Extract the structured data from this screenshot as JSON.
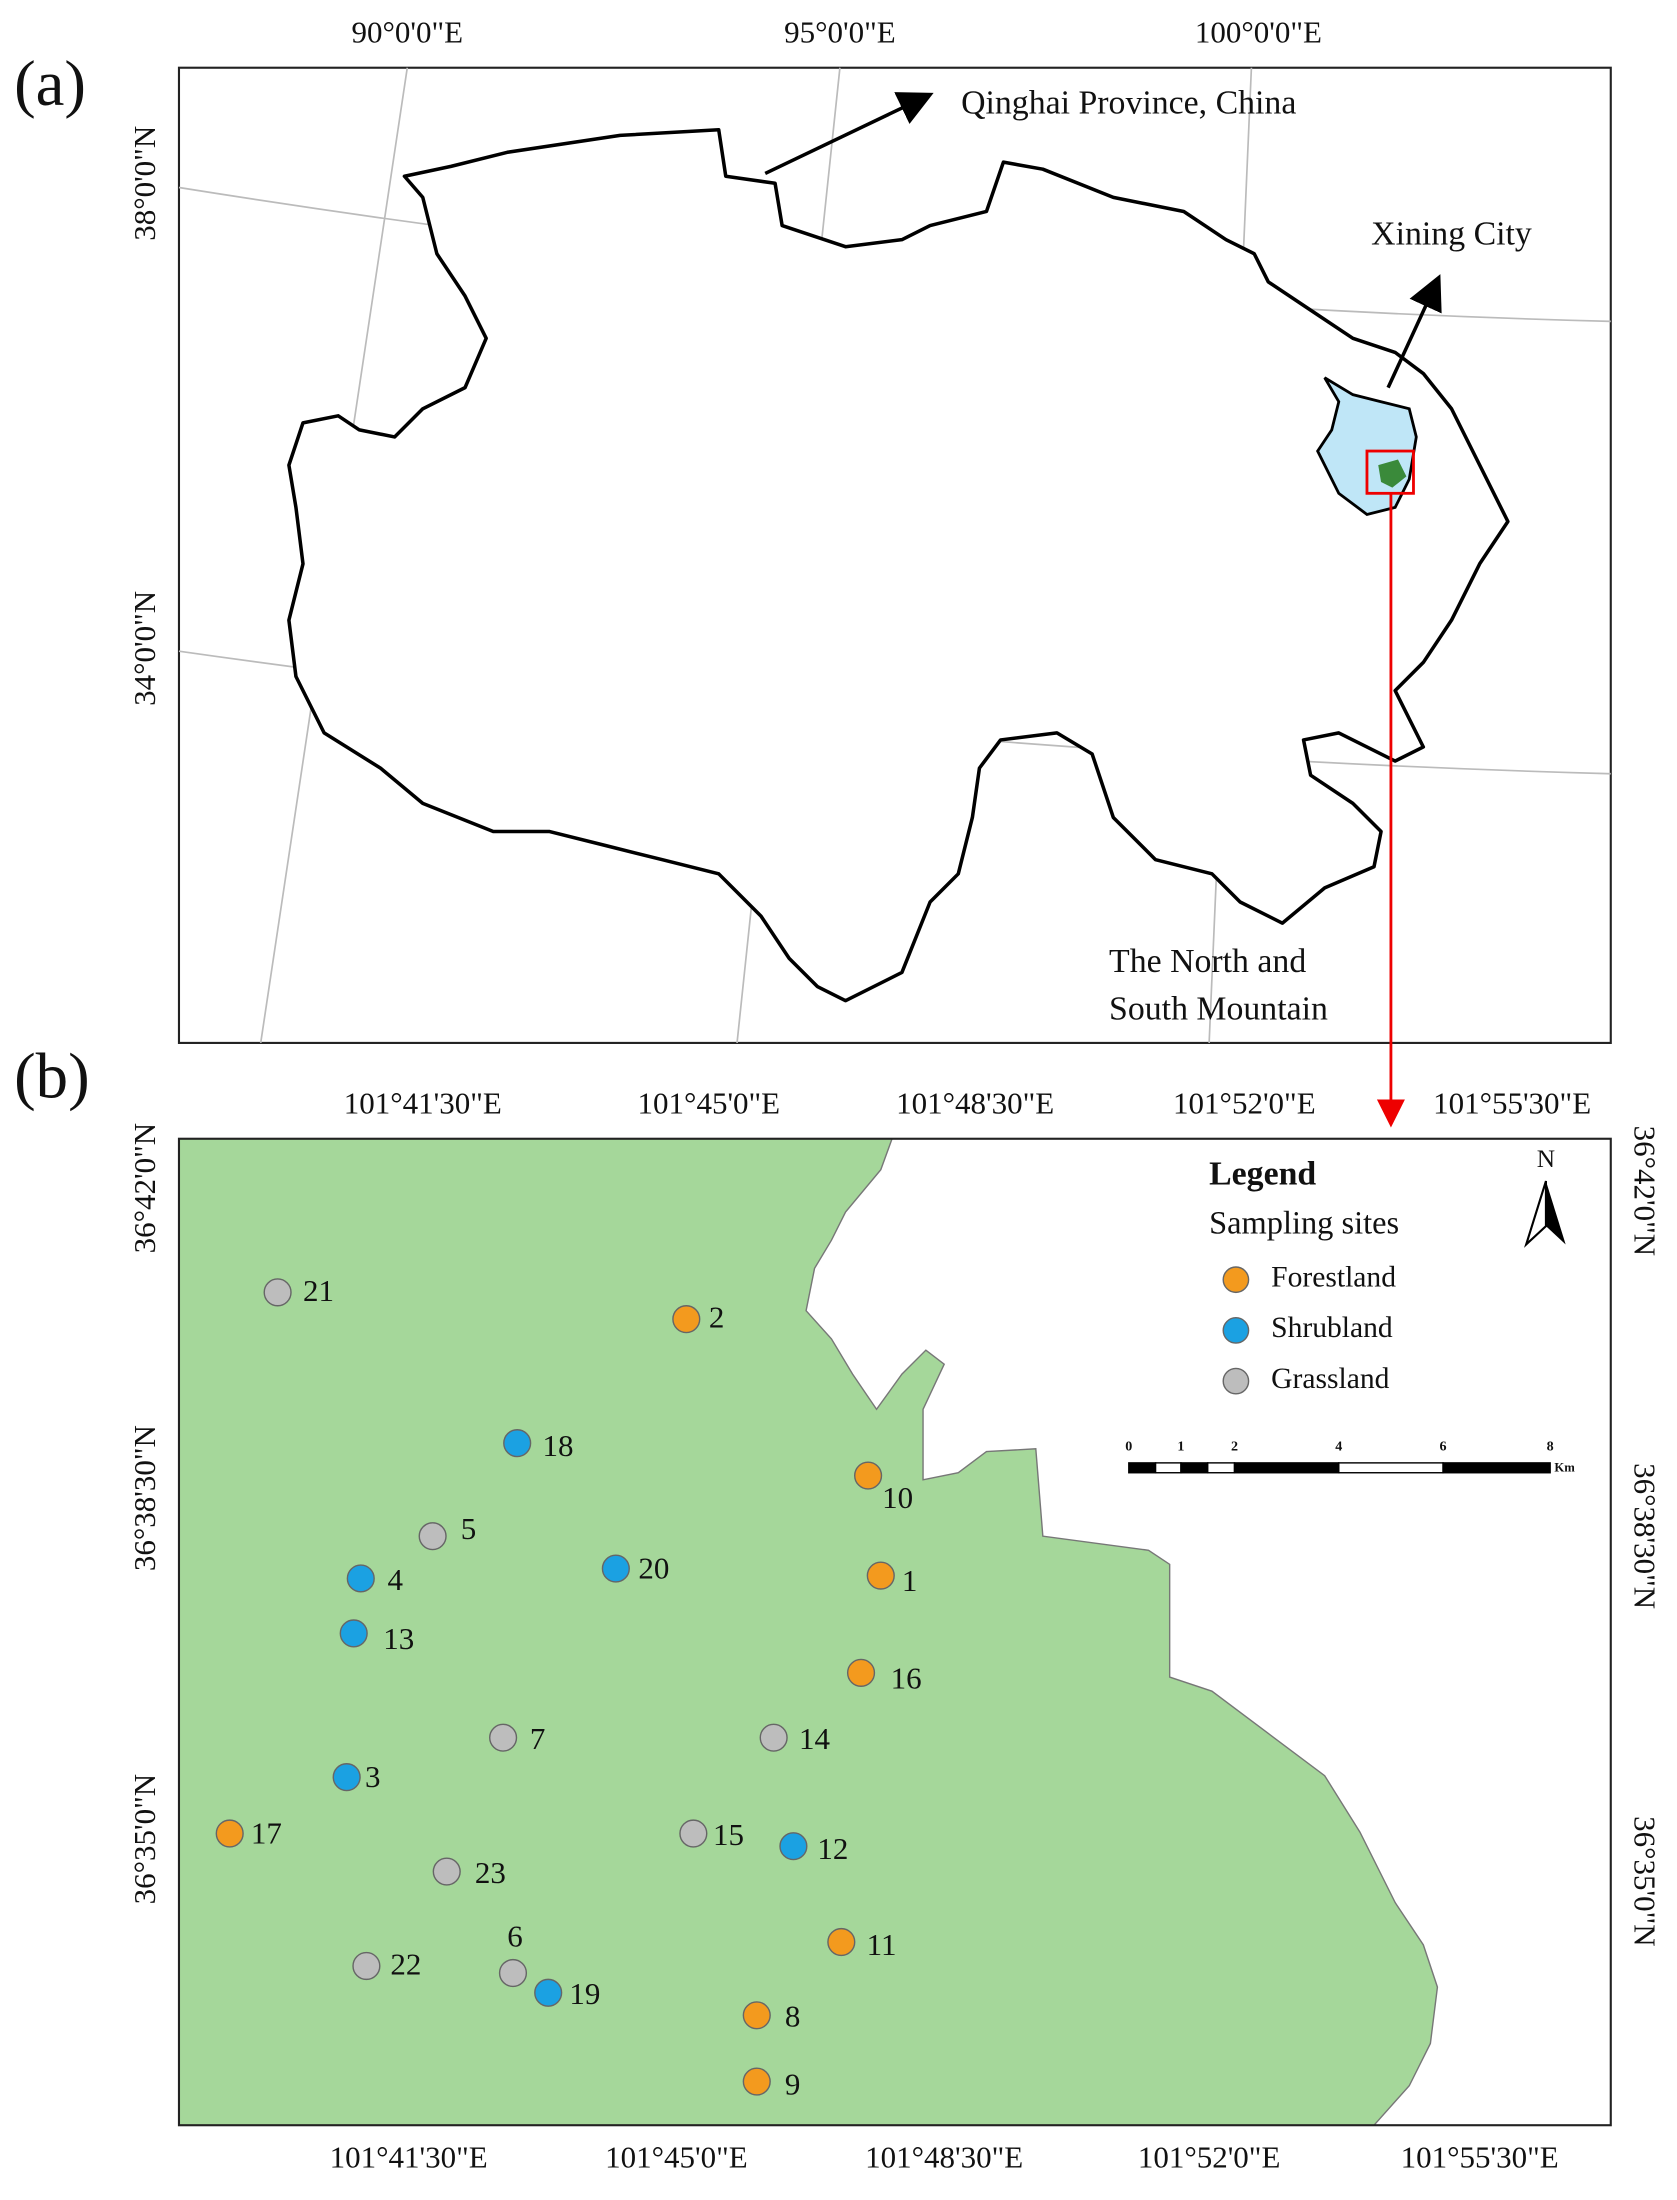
{
  "panel_a": {
    "label": "(a)",
    "lon_labels": [
      "90°0'0\"E",
      "95°0'0\"E",
      "100°0'0\"E"
    ],
    "lat_labels": [
      "38°0'0\"N",
      "34°0'0\"N"
    ],
    "province_label": "Qinghai Province, China",
    "city_label": "Xining City",
    "mountain_label": [
      "The North and",
      "South Mountain"
    ]
  },
  "panel_b": {
    "label": "(b)",
    "lon_labels": [
      "101°41'30\"E",
      "101°45'0\"E",
      "101°48'30\"E",
      "101°52'0\"E",
      "101°55'30\"E"
    ],
    "lat_labels": [
      "36°42'0\"N",
      "36°38'30\"N",
      "36°35'0\"N"
    ],
    "legend": {
      "title": "Legend",
      "subtitle": "Sampling sites",
      "items": [
        {
          "name": "Forestland",
          "color": "#f39a1e"
        },
        {
          "name": "Shrubland",
          "color": "#1ba1e2"
        },
        {
          "name": "Grassland",
          "color": "#bdbdbd"
        }
      ]
    },
    "north": "N",
    "scale_bar": {
      "labels": [
        "0",
        "1",
        "2",
        "4",
        "6",
        "8"
      ],
      "unit": "Km"
    },
    "sites": [
      {
        "label": "1",
        "type": "Forestland"
      },
      {
        "label": "2",
        "type": "Forestland"
      },
      {
        "label": "3",
        "type": "Shrubland"
      },
      {
        "label": "4",
        "type": "Shrubland"
      },
      {
        "label": "5",
        "type": "Grassland"
      },
      {
        "label": "6",
        "type": "Grassland"
      },
      {
        "label": "7",
        "type": "Grassland"
      },
      {
        "label": "8",
        "type": "Forestland"
      },
      {
        "label": "9",
        "type": "Forestland"
      },
      {
        "label": "10",
        "type": "Forestland"
      },
      {
        "label": "11",
        "type": "Forestland"
      },
      {
        "label": "12",
        "type": "Shrubland"
      },
      {
        "label": "13",
        "type": "Shrubland"
      },
      {
        "label": "14",
        "type": "Grassland"
      },
      {
        "label": "15",
        "type": "Grassland"
      },
      {
        "label": "16",
        "type": "Forestland"
      },
      {
        "label": "17",
        "type": "Forestland"
      },
      {
        "label": "18",
        "type": "Shrubland"
      },
      {
        "label": "19",
        "type": "Shrubland"
      },
      {
        "label": "20",
        "type": "Shrubland"
      },
      {
        "label": "21",
        "type": "Grassland"
      },
      {
        "label": "22",
        "type": "Grassland"
      },
      {
        "label": "23",
        "type": "Grassland"
      }
    ]
  }
}
